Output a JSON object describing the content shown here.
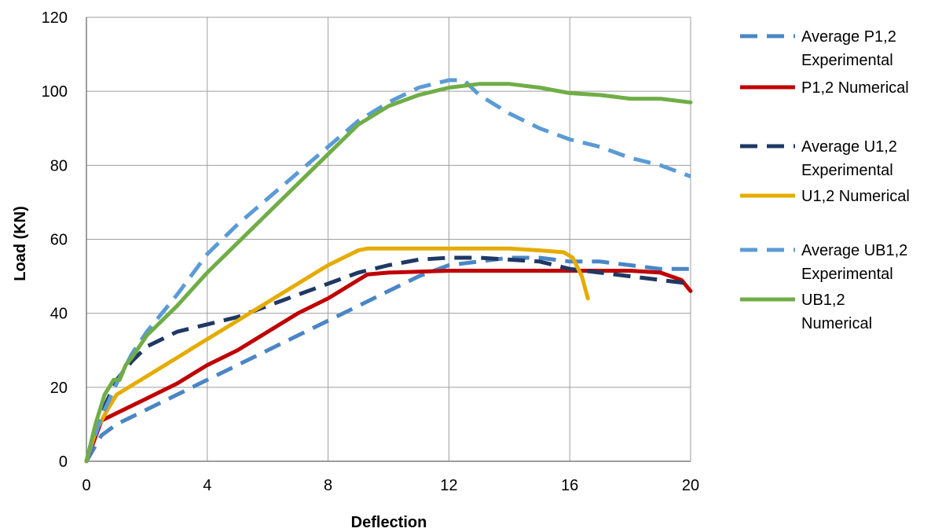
{
  "chart_data": {
    "type": "line",
    "xlabel": "Deflection",
    "ylabel": "Load (KN)",
    "xlim": [
      0,
      20
    ],
    "ylim": [
      0,
      120
    ],
    "x_ticks": [
      "0",
      "4",
      "8",
      "12",
      "16",
      "20"
    ],
    "y_ticks": [
      "0",
      "20",
      "40",
      "60",
      "80",
      "100",
      "120"
    ],
    "grid": true,
    "legend_position": "right",
    "series": [
      {
        "name": "Average P1,2 Experimental",
        "label_lines": [
          "Average P1,2",
          "Experimental"
        ],
        "color": "#4a86c5",
        "style": "dashed",
        "x": [
          0,
          0.5,
          1,
          2,
          3,
          4,
          5,
          6,
          7,
          8,
          9,
          10,
          11,
          12,
          13,
          14,
          15,
          16,
          17,
          18,
          19,
          20
        ],
        "y": [
          0,
          7,
          10,
          14,
          18,
          22,
          26,
          30,
          34,
          38,
          42,
          46,
          50,
          53,
          54,
          55,
          55,
          54,
          54,
          53,
          52,
          52
        ]
      },
      {
        "name": "P1,2 Numerical",
        "label_lines": [
          "P1,2 Numerical"
        ],
        "color": "#c00000",
        "style": "solid",
        "x": [
          0,
          0.5,
          1,
          2,
          3,
          4,
          5,
          6,
          7,
          8,
          9,
          9.3,
          10,
          12,
          14,
          16,
          18,
          19,
          19.7,
          20
        ],
        "y": [
          0,
          11,
          13,
          17,
          21,
          26,
          30,
          35,
          40,
          44,
          49,
          50.5,
          51,
          51.5,
          51.5,
          51.5,
          51.5,
          51,
          49,
          46
        ]
      },
      {
        "name": "Average U1,2 Experimental",
        "label_lines": [
          "Average U1,2",
          "Experimental"
        ],
        "color": "#1f3864",
        "style": "dashed",
        "x": [
          0,
          0.5,
          1,
          1.5,
          2,
          3,
          4,
          5,
          6,
          7,
          8,
          9,
          10,
          11,
          12,
          13,
          14,
          15,
          16,
          17,
          18,
          19,
          20
        ],
        "y": [
          0,
          13,
          22,
          27,
          31,
          35,
          37,
          39,
          42,
          45,
          48,
          51,
          53,
          54.5,
          55,
          55,
          54.5,
          54,
          52,
          51,
          50,
          49,
          48
        ]
      },
      {
        "name": "U1,2 Numerical",
        "label_lines": [
          "U1,2 Numerical"
        ],
        "color": "#e5ac00",
        "style": "solid",
        "x": [
          0,
          0.3,
          0.7,
          1,
          2,
          3,
          4,
          5,
          6,
          7,
          8,
          9,
          9.3,
          10,
          12,
          14,
          15,
          15.8,
          16.1,
          16.4,
          16.6
        ],
        "y": [
          0,
          8,
          14,
          18,
          23,
          28,
          33,
          38,
          43,
          48,
          53,
          57,
          57.5,
          57.5,
          57.5,
          57.5,
          57,
          56.5,
          55,
          50,
          44
        ]
      },
      {
        "name": "Average UB1,2 Experimental",
        "label_lines": [
          "Average UB1,2",
          "Experimental"
        ],
        "color": "#5b9bd5",
        "style": "dashed",
        "x": [
          0,
          0.5,
          1,
          1.5,
          2,
          3,
          4,
          5,
          6,
          7,
          8,
          9,
          10,
          11,
          12,
          12.5,
          13,
          14,
          15,
          16,
          17,
          18,
          19,
          20
        ],
        "y": [
          0,
          12,
          21,
          29,
          35,
          45,
          56,
          64,
          71,
          78,
          85,
          92,
          97,
          101,
          103,
          103,
          99,
          94,
          90,
          87,
          85,
          82,
          80,
          77
        ]
      },
      {
        "name": "UB1,2 Numerical",
        "label_lines": [
          "UB1,2",
          "Numerical"
        ],
        "color": "#70ad47",
        "style": "solid",
        "x": [
          0,
          0.3,
          0.6,
          0.9,
          1.1,
          1.3,
          1.5,
          2,
          3,
          4,
          5,
          6,
          7,
          8,
          9,
          10,
          11,
          12,
          13,
          14,
          15,
          16,
          17,
          18,
          19,
          20
        ],
        "y": [
          0,
          10,
          18,
          22,
          22,
          26,
          28,
          34,
          42,
          51,
          59,
          67,
          75,
          83,
          91,
          96,
          99,
          101,
          102,
          102,
          101,
          99.5,
          99,
          98,
          98,
          97
        ]
      }
    ]
  }
}
